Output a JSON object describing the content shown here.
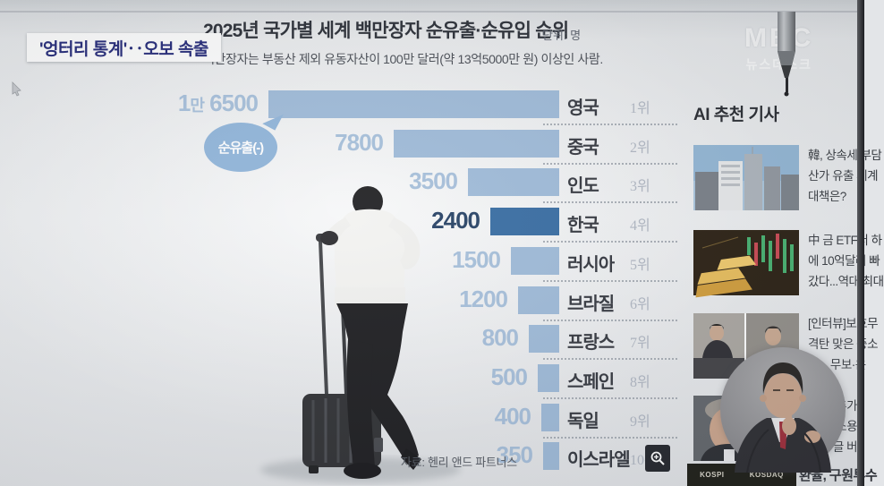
{
  "broadcaster": {
    "logo_line1": "MBC",
    "logo_line2": "뉴스데스크"
  },
  "headline_badge": "'엉터리 통계'‥오보 속출",
  "chart_data": {
    "type": "bar",
    "title": "2025년 국가별 세계 백만장자 순유출·순유입 순위",
    "unit_label": "단위: 명",
    "subtitle": "백만장자는 부동산 제외 유동자산이 100만 달러(약 13억5000만 원) 이상인 사람.",
    "bubble_label": "순유출(-)",
    "source": "자료: 헨리 앤드 파트너스",
    "orientation": "horizontal-right-aligned",
    "xlim": [
      0,
      16500
    ],
    "categories": [
      "영국",
      "중국",
      "인도",
      "한국",
      "러시아",
      "브라질",
      "프랑스",
      "스페인",
      "독일",
      "이스라엘"
    ],
    "rows": [
      {
        "country": "영국",
        "rank": "1위",
        "value": 16500,
        "value_label": "1만 6500",
        "highlight": false
      },
      {
        "country": "중국",
        "rank": "2위",
        "value": 7800,
        "value_label": "7800",
        "highlight": false
      },
      {
        "country": "인도",
        "rank": "3위",
        "value": 3500,
        "value_label": "3500",
        "highlight": false
      },
      {
        "country": "한국",
        "rank": "4위",
        "value": 2400,
        "value_label": "2400",
        "highlight": true
      },
      {
        "country": "러시아",
        "rank": "5위",
        "value": 1500,
        "value_label": "1500",
        "highlight": false
      },
      {
        "country": "브라질",
        "rank": "6위",
        "value": 1200,
        "value_label": "1200",
        "highlight": false
      },
      {
        "country": "프랑스",
        "rank": "7위",
        "value": 800,
        "value_label": "800",
        "highlight": false
      },
      {
        "country": "스페인",
        "rank": "8위",
        "value": 500,
        "value_label": "500",
        "highlight": false
      },
      {
        "country": "독일",
        "rank": "9위",
        "value": 400,
        "value_label": "400",
        "highlight": false
      },
      {
        "country": "이스라엘",
        "rank": "10위",
        "value": 350,
        "value_label": "350",
        "highlight": false
      }
    ],
    "colors": {
      "bar": "#9bb8d7",
      "bar_highlight": "#30679f",
      "value": "#a3bdd9",
      "value_highlight": "#1e3a5f"
    }
  },
  "sidebar": {
    "header": "AI 추천 기사",
    "articles": [
      {
        "thumb_icon": "city-skyline-photo",
        "lines": [
          "韓, 상속세 부담",
          "산가 유출 세계",
          "대책은?"
        ]
      },
      {
        "thumb_icon": "gold-bars-chart-photo",
        "lines": [
          "中 금 ETF서 하",
          "에 10억달러 빠",
          "갔다...역대 최대"
        ]
      },
      {
        "thumb_icon": "interview-panel-photo",
        "lines": [
          "[인터뷰]보호무",
          "격탄 맞은 중소",
          "업... 무보·은"
        ]
      },
      {
        "thumb_icon": "portrait-photo",
        "lines": [
          "추가",
          "소용",
          "글 버"
        ]
      }
    ]
  },
  "ticker": {
    "kospi": "KOSPI",
    "kosdaq": "KOSDAQ",
    "headline": "환율, 구원투수"
  },
  "icons": {
    "zoom_button": "magnifier-plus-icon",
    "cursor": "mouse-pointer",
    "pen": "stylus-pen",
    "interpreter": "sign-language-interpreter"
  }
}
